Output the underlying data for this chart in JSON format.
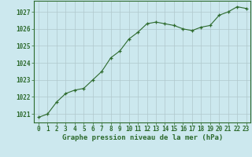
{
  "x": [
    0,
    1,
    2,
    3,
    4,
    5,
    6,
    7,
    8,
    9,
    10,
    11,
    12,
    13,
    14,
    15,
    16,
    17,
    18,
    19,
    20,
    21,
    22,
    23
  ],
  "y": [
    1020.8,
    1021.0,
    1021.7,
    1022.2,
    1022.4,
    1022.5,
    1023.0,
    1023.5,
    1024.3,
    1024.7,
    1025.4,
    1025.8,
    1026.3,
    1026.4,
    1026.3,
    1026.2,
    1026.0,
    1025.9,
    1026.1,
    1026.2,
    1026.8,
    1027.0,
    1027.3,
    1027.2
  ],
  "line_color": "#2d6a2d",
  "marker": "+",
  "bg_color": "#cce8ee",
  "grid_color": "#b0c8cc",
  "xlabel": "Graphe pression niveau de la mer (hPa)",
  "xlabel_color": "#2d6a2d",
  "ylabel_ticks": [
    1021,
    1022,
    1023,
    1024,
    1025,
    1026,
    1027
  ],
  "ylim": [
    1020.5,
    1027.65
  ],
  "xlim": [
    -0.5,
    23.5
  ],
  "xticks": [
    0,
    1,
    2,
    3,
    4,
    5,
    6,
    7,
    8,
    9,
    10,
    11,
    12,
    13,
    14,
    15,
    16,
    17,
    18,
    19,
    20,
    21,
    22,
    23
  ],
  "tick_color": "#2d6a2d",
  "spine_color": "#2d6a2d",
  "tick_fontsize": 5.5,
  "xlabel_fontsize": 6.5
}
